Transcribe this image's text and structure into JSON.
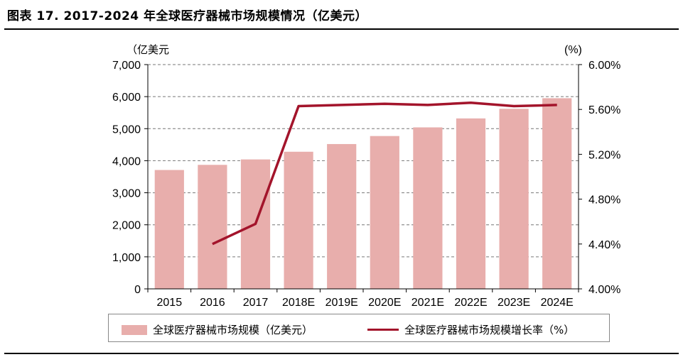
{
  "title": "图表 17. 2017-2024 年全球医疗器械市场规模情况（亿美元）",
  "colors": {
    "bar": "#e8aeac",
    "line": "#a3142b",
    "grid": "#777777"
  },
  "legend": {
    "bar_label": "全球医疗器械市场规模（亿美元）",
    "line_label": "全球医疗器械市场规模增长率（%）"
  },
  "chart_data": {
    "type": "bar",
    "categories": [
      "2015",
      "2016",
      "2017",
      "2018E",
      "2019E",
      "2020E",
      "2021E",
      "2022E",
      "2023E",
      "2024E"
    ],
    "series": [
      {
        "name": "全球医疗器械市场规模（亿美元）",
        "type": "bar",
        "axis": "left",
        "values": [
          3710,
          3870,
          4040,
          4280,
          4520,
          4770,
          5040,
          5320,
          5620,
          5950
        ]
      },
      {
        "name": "全球医疗器械市场规模增长率（%）",
        "type": "line",
        "axis": "right",
        "values": [
          null,
          4.4,
          4.58,
          5.63,
          5.64,
          5.65,
          5.64,
          5.66,
          5.63,
          5.64
        ]
      }
    ],
    "ylabel": "（亿美元",
    "ylabel_right": "(%)",
    "ylim": [
      0,
      7000
    ],
    "ylim_right": [
      4.0,
      6.0
    ],
    "yticks": [
      "0",
      "1,000",
      "2,000",
      "3,000",
      "4,000",
      "5,000",
      "6,000",
      "7,000"
    ],
    "yticks_right": [
      "4.00%",
      "4.40%",
      "4.80%",
      "5.20%",
      "5.60%",
      "6.00%"
    ],
    "grid": true,
    "legend_position": "bottom"
  }
}
